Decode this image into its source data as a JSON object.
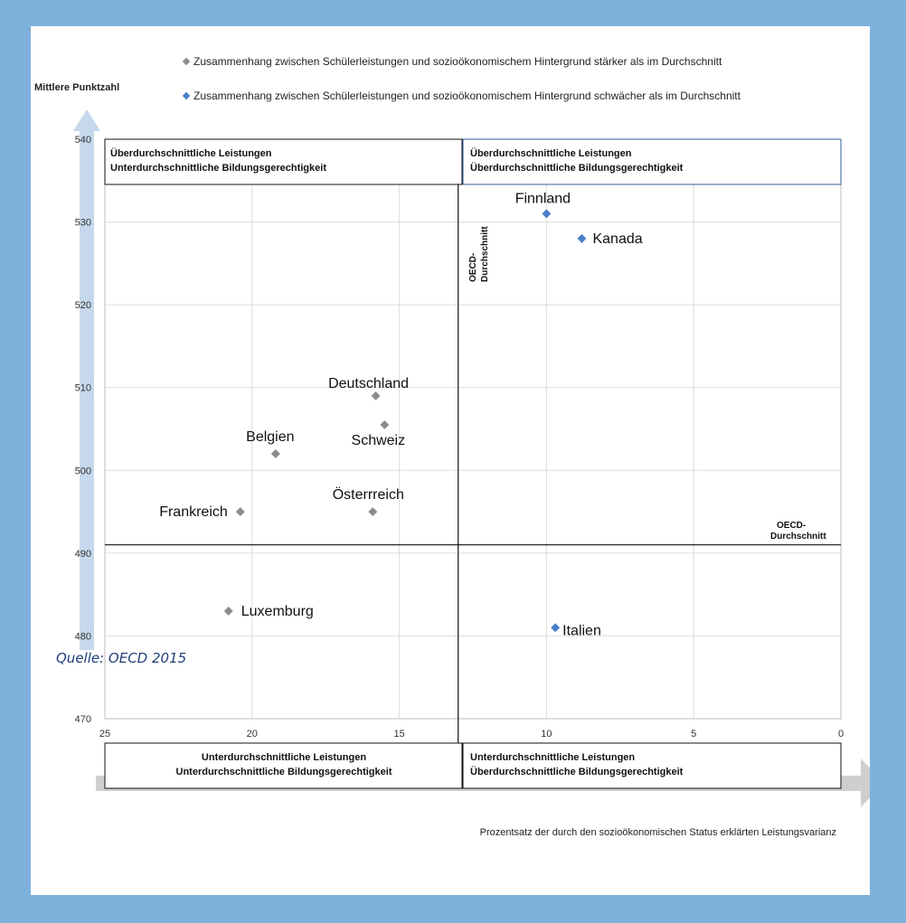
{
  "colors": {
    "strong": "#8c8c8c",
    "weak": "#4a7fcb",
    "frame_bg": "#7fb1dd",
    "arrow": "#cfcfcf",
    "y_arrow": "#c6d8ec",
    "gridline": "#dcdcdc"
  },
  "legend": {
    "strong": "Zusammenhang zwischen Schülerleistungen und sozioökonomischem Hintergrund stärker als im Durchschnitt",
    "weak": "Zusammenhang zwischen Schülerleistungen und sozioökonomischem Hintergrund schwächer als im Durchschnitt"
  },
  "quadrants": {
    "top_left": [
      "Überdurchschnittliche Leistungen",
      "Unterdurchschnittliche Bildungsgerechtigkeit"
    ],
    "top_right": [
      "Überdurchschnittliche Leistungen",
      "Überdurchschnittliche Bildungsgerechtigkeit"
    ],
    "bottom_left": [
      "Unterdurchschnittliche Leistungen",
      "Unterdurchschnittliche Bildungsgerechtigkeit"
    ],
    "bottom_right": [
      "Unterdurchschnittliche Leistungen",
      "Überdurchschnittliche Bildungsgerechtigkeit"
    ]
  },
  "oecd_average_label": [
    "OECD-",
    "Durchschnitt"
  ],
  "source": "Quelle: OECD 2015",
  "chart_data": {
    "type": "scatter",
    "ylabel": "Mittlere Punktzahl",
    "xlabel": "Prozentsatz der durch den sozioökonomischen Status erklärten Leistungsvarianz",
    "xlim": [
      25,
      0
    ],
    "ylim": [
      470,
      540
    ],
    "x_reversed": true,
    "xticks": [
      25,
      20,
      15,
      10,
      5,
      0
    ],
    "yticks": [
      470,
      480,
      490,
      500,
      510,
      520,
      530,
      540
    ],
    "grid": true,
    "legend_position": "top",
    "oecd_average": {
      "x": 13,
      "y": 491
    },
    "series": [
      {
        "name": "Zusammenhang zwischen Schülerleistungen und sozioökonomischem Hintergrund stärker als im Durchschnitt",
        "points": [
          {
            "label": "Deutschland",
            "x": 15.8,
            "y": 509
          },
          {
            "label": "Schweiz",
            "x": 15.5,
            "y": 505.5
          },
          {
            "label": "Belgien",
            "x": 19.2,
            "y": 502
          },
          {
            "label": "Frankreich",
            "x": 20.4,
            "y": 495
          },
          {
            "label": "Österrreich",
            "x": 15.9,
            "y": 495
          },
          {
            "label": "Luxemburg",
            "x": 20.8,
            "y": 483
          }
        ]
      },
      {
        "name": "Zusammenhang zwischen Schülerleistungen und sozioökonomischem Hintergrund schwächer als im Durchschnitt",
        "points": [
          {
            "label": "Finnland",
            "x": 10,
            "y": 531
          },
          {
            "label": "Kanada",
            "x": 8.8,
            "y": 528
          },
          {
            "label": "Italien",
            "x": 9.7,
            "y": 481
          }
        ]
      }
    ]
  }
}
